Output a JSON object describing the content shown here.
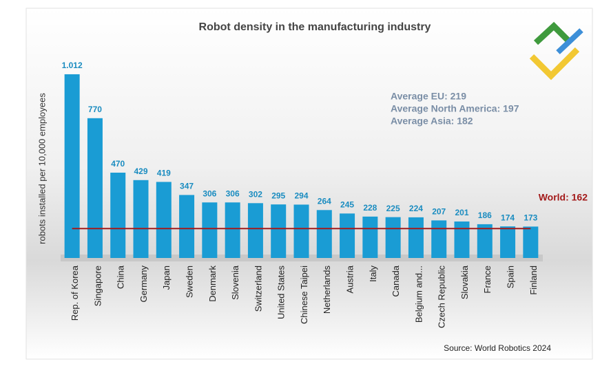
{
  "chart_data": {
    "type": "bar",
    "title": "Robot density in the manufacturing industry",
    "y_label": "robots installed per 10,000 employees",
    "categories": [
      "Rep. of Korea",
      "Singapore",
      "China",
      "Germany",
      "Japan",
      "Sweden",
      "Denmark",
      "Slovenia",
      "Switzerland",
      "United States",
      "Chinese Taipei",
      "Netherlands",
      "Austria",
      "Italy",
      "Canada",
      "Belgium and...",
      "Czech Republic",
      "Slovakia",
      "France",
      "Spain",
      "Finland"
    ],
    "values": [
      1012,
      770,
      470,
      429,
      419,
      347,
      306,
      306,
      302,
      295,
      294,
      264,
      245,
      228,
      225,
      224,
      207,
      201,
      186,
      174,
      173
    ],
    "value_labels": [
      "1.012",
      "770",
      "470",
      "429",
      "419",
      "347",
      "306",
      "306",
      "302",
      "295",
      "294",
      "264",
      "245",
      "228",
      "225",
      "224",
      "207",
      "201",
      "186",
      "174",
      "173"
    ],
    "color": "#1a9cd4",
    "ylim": [
      0,
      1080
    ],
    "reference_line": {
      "value": 162,
      "label": "World: 162",
      "color": "#a31a1a"
    },
    "annotations": [
      "Average EU: 219",
      "Average North America: 197",
      "Average Asia: 182"
    ],
    "source": "Source: World Robotics 2024"
  }
}
